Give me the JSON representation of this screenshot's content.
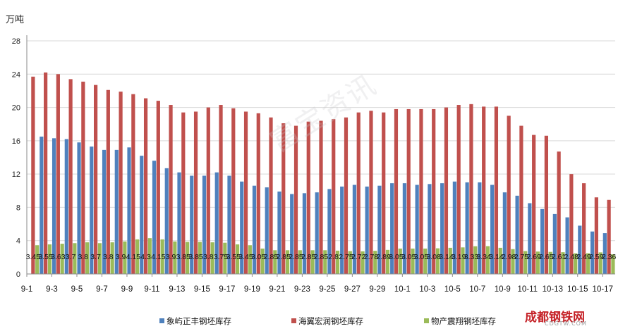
{
  "chart_data": {
    "type": "bar",
    "unit_label": "万吨",
    "ylim": [
      0,
      28
    ],
    "yticks": [
      0,
      4,
      8,
      12,
      16,
      20,
      24,
      28
    ],
    "grid": true,
    "legend_position": "bottom",
    "categories": [
      "9-1",
      "9-2",
      "9-3",
      "9-4",
      "9-5",
      "9-6",
      "9-7",
      "9-8",
      "9-9",
      "9-10",
      "9-11",
      "9-12",
      "9-13",
      "9-14",
      "9-15",
      "9-16",
      "9-17",
      "9-18",
      "9-19",
      "9-20",
      "9-21",
      "9-22",
      "9-23",
      "9-24",
      "9-25",
      "9-26",
      "9-27",
      "9-28",
      "9-29",
      "9-30",
      "10-1",
      "10-2",
      "10-3",
      "10-4",
      "10-5",
      "10-6",
      "10-7",
      "10-8",
      "10-9",
      "10-10",
      "10-11",
      "10-12",
      "10-13",
      "10-14",
      "10-15",
      "10-16",
      "10-17"
    ],
    "tick_labels": [
      "9-1",
      "9-3",
      "9-5",
      "9-7",
      "9-9",
      "9-11",
      "9-13",
      "9-15",
      "9-17",
      "9-19",
      "9-21",
      "9-23",
      "9-25",
      "9-27",
      "9-29",
      "10-1",
      "10-3",
      "10-5",
      "10-7",
      "10-9",
      "10-11",
      "10-13",
      "10-15",
      "10-17"
    ],
    "series": [
      {
        "name": "象屿正丰钢坯库存",
        "color": "#4f81bd",
        "values": [
          0,
          16.5,
          16.3,
          16.2,
          15.8,
          15.3,
          14.9,
          14.9,
          15.2,
          14.2,
          13.6,
          12.7,
          12.2,
          11.8,
          11.8,
          12.2,
          11.8,
          11.1,
          10.6,
          10.4,
          9.9,
          9.6,
          9.7,
          9.8,
          10.2,
          10.5,
          10.7,
          10.5,
          10.6,
          10.9,
          10.9,
          10.7,
          10.8,
          10.9,
          11.1,
          11.0,
          11.0,
          10.7,
          9.8,
          9.4,
          8.5,
          7.8,
          7.2,
          6.8,
          5.8,
          5.1,
          4.9
        ]
      },
      {
        "name": "海翼宏润钢坯库存",
        "color": "#c0504d",
        "values": [
          23.7,
          24.2,
          24.0,
          23.4,
          23.1,
          22.7,
          22.1,
          21.9,
          21.6,
          21.1,
          20.8,
          20.3,
          19.4,
          19.5,
          20.0,
          20.3,
          19.9,
          19.5,
          19.3,
          18.8,
          18.1,
          17.8,
          18.3,
          18.4,
          18.6,
          18.8,
          19.4,
          19.6,
          19.4,
          19.8,
          19.8,
          19.8,
          19.8,
          20.0,
          20.3,
          20.4,
          20.1,
          20.1,
          19.0,
          17.8,
          16.7,
          16.6,
          14.7,
          12.0,
          10.9,
          9.2,
          8.9
        ]
      },
      {
        "name": "物产震翔钢坯库存",
        "color": "#9bbb59",
        "values": [
          3.45,
          3.55,
          3.63,
          3.7,
          3.8,
          3.7,
          3.8,
          3.9,
          4.15,
          4.3,
          4.15,
          3.9,
          3.85,
          3.85,
          3.8,
          3.75,
          3.55,
          3.45,
          3.05,
          2.85,
          2.85,
          2.85,
          2.85,
          2.85,
          2.8,
          2.75,
          2.72,
          2.78,
          2.89,
          3.05,
          3.05,
          3.05,
          3.08,
          3.14,
          3.19,
          3.33,
          3.34,
          3.14,
          2.98,
          2.75,
          2.69,
          2.65,
          2.61,
          2.48,
          2.49,
          2.59,
          2.36
        ]
      }
    ],
    "data_labels": [
      "3.45",
      "3.55",
      "3.63",
      "3.7",
      "3.8",
      "3.7",
      "3.8",
      "3.9",
      "4.15",
      "4.3",
      "4.15",
      "3.9",
      "3.85",
      "3.85",
      "3.8",
      "3.75",
      "3.55",
      "3.45",
      "3.05",
      "2.85",
      "2.85",
      "2.85",
      "2.85",
      "2.85",
      "2.8",
      "2.75",
      "2.72",
      "2.78",
      "2.89",
      "3.05",
      "3.05",
      "3.05",
      "3.08",
      "3.14",
      "3.19",
      "3.33",
      "3.34",
      "3.14",
      "2.98",
      "2.75",
      "2.69",
      "2.65",
      "2.61",
      "2.48",
      "2.49",
      "2.59",
      "2.36"
    ]
  },
  "watermark": "富宝资讯",
  "logo": {
    "text": "成都钢铁网",
    "url": "CDGTW.COM"
  }
}
